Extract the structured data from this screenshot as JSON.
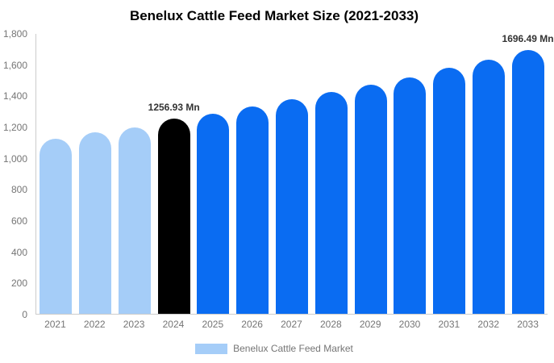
{
  "chart_data": {
    "type": "bar",
    "title": "Benelux Cattle Feed Market Size (2021-2033)",
    "categories": [
      "2021",
      "2022",
      "2023",
      "2024",
      "2025",
      "2026",
      "2027",
      "2028",
      "2029",
      "2030",
      "2031",
      "2032",
      "2033"
    ],
    "values": [
      1125,
      1165,
      1200,
      1256.93,
      1285,
      1335,
      1380,
      1425,
      1475,
      1520,
      1580,
      1635,
      1696.49
    ],
    "bar_color_keys": [
      "light",
      "light",
      "light",
      "highlight",
      "primary",
      "primary",
      "primary",
      "primary",
      "primary",
      "primary",
      "primary",
      "primary",
      "primary"
    ],
    "annotations": [
      {
        "category": "2024",
        "text": "1256.93 Mn"
      },
      {
        "category": "2033",
        "text": "1696.49 Mn"
      }
    ],
    "xlabel": "",
    "ylabel": "",
    "ylim": [
      0,
      1800
    ],
    "y_ticks": [
      "0",
      "200",
      "400",
      "600",
      "800",
      "1,000",
      "1,200",
      "1,400",
      "1,600",
      "1,800"
    ],
    "grid": false,
    "legend": {
      "position": "bottom",
      "entries": [
        "Benelux Cattle Feed Market"
      ]
    }
  },
  "colors": {
    "light_blue": "#A5CDF8",
    "primary_blue": "#0A6CF2",
    "highlight_black": "#000000",
    "axis_line": "#CCCCCC",
    "axis_text": "#757575",
    "annotation_text": "#333333",
    "background": "#FFFFFF"
  }
}
